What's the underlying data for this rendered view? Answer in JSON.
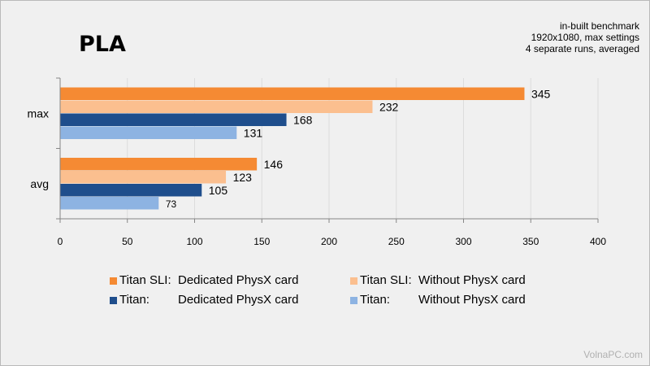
{
  "chart_data": {
    "type": "bar",
    "orientation": "horizontal",
    "title": "PLA",
    "notes": [
      "in-built benchmark",
      "1920x1080, max settings",
      "4 separate runs, averaged"
    ],
    "categories": [
      "max",
      "avg"
    ],
    "series": [
      {
        "name": "Titan SLI: Dedicated PhysX card",
        "group": "Titan SLI:",
        "desc": "Dedicated PhysX card",
        "color": "#f58a33",
        "values": [
          345,
          146
        ]
      },
      {
        "name": "Titan SLI: Without PhysX card",
        "group": "Titan SLI:",
        "desc": "Without PhysX card",
        "color": "#fbbf8f",
        "values": [
          232,
          123
        ]
      },
      {
        "name": "Titan: Dedicated PhysX card",
        "group": "Titan:",
        "desc": "Dedicated PhysX card",
        "color": "#1f4e8c",
        "values": [
          168,
          105
        ]
      },
      {
        "name": "Titan: Without PhysX card",
        "group": "Titan:",
        "desc": "Without PhysX card",
        "color": "#8db3e2",
        "values": [
          131,
          73
        ]
      }
    ],
    "xlim": [
      0,
      400
    ],
    "xticks": [
      0,
      50,
      100,
      150,
      200,
      250,
      300,
      350,
      400
    ],
    "grid": true,
    "legend_position": "bottom"
  },
  "watermark": "VolnaPC.com"
}
